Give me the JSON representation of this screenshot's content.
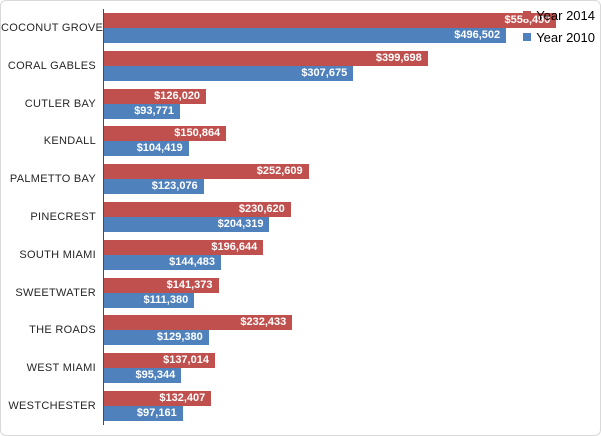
{
  "chart_data": {
    "type": "bar",
    "orientation": "horizontal",
    "title": "",
    "xlabel": "",
    "ylabel": "",
    "xlim": [
      0,
      600000
    ],
    "grid": false,
    "legend_position": "top-right",
    "value_prefix": "$",
    "categories": [
      "COCONUT GROVE",
      "CORAL GABLES",
      "CUTLER BAY",
      "KENDALL",
      "PALMETTO BAY",
      "PINECREST",
      "SOUTH MIAMI",
      "SWEETWATER",
      "THE ROADS",
      "WEST MIAMI",
      "WESTCHESTER"
    ],
    "series": [
      {
        "name": "Year 2014",
        "color": "#C0504D",
        "values": [
          558490,
          399698,
          126020,
          150864,
          252609,
          230620,
          196644,
          141373,
          232433,
          137014,
          132407
        ],
        "labels": [
          "$558,490",
          "$399,698",
          "$126,020",
          "$150,864",
          "$252,609",
          "$230,620",
          "$196,644",
          "$141,373",
          "$232,433",
          "$137,014",
          "$132,407"
        ]
      },
      {
        "name": "Year 2010",
        "color": "#4F81BD",
        "values": [
          496502,
          307675,
          93771,
          104419,
          123076,
          204319,
          144483,
          111380,
          129380,
          95344,
          97161
        ],
        "labels": [
          "$496,502",
          "$307,675",
          "$93,771",
          "$104,419",
          "$123,076",
          "$204,319",
          "$144,483",
          "$111,380",
          "$129,380",
          "$95,344",
          "$97,161"
        ]
      }
    ],
    "colors": {
      "axis_line": "#4a4a4a",
      "category_text": "#262626",
      "value_text": "#ffffff",
      "border": "#d9d9d9"
    }
  },
  "legend": {
    "items": [
      {
        "label": "Year 2014",
        "color": "#C0504D"
      },
      {
        "label": "Year 2010",
        "color": "#4F81BD"
      }
    ]
  }
}
